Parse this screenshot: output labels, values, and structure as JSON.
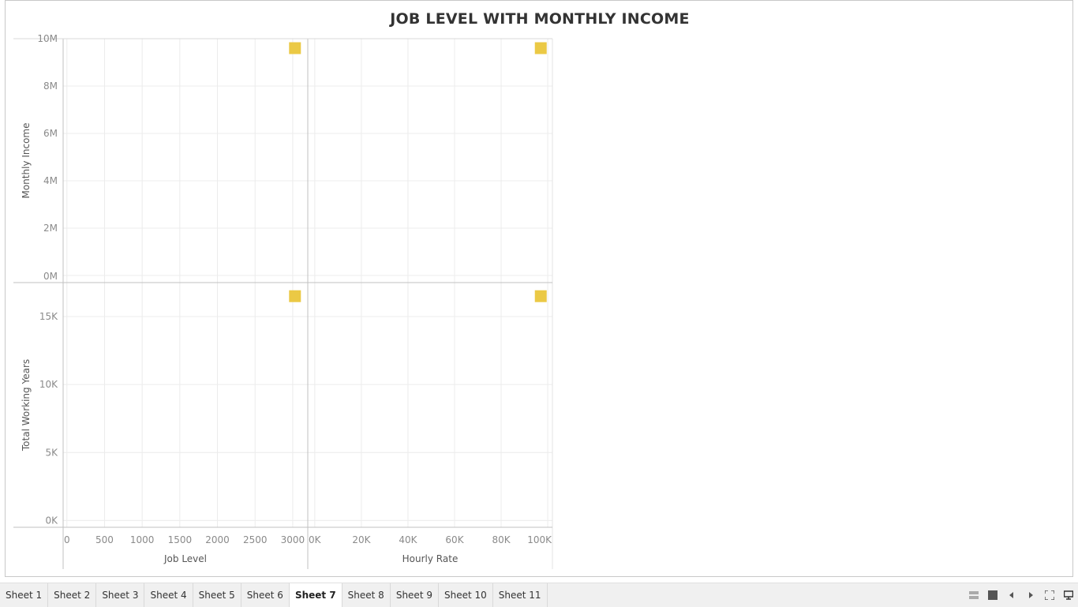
{
  "title": "JOB LEVEL WITH MONTHLY INCOME",
  "colors": {
    "mark": "#EBC945",
    "grid": "#ececec",
    "divider": "#c0c0c0",
    "tick": "#8a8a8a"
  },
  "chart_data": {
    "type": "scatter",
    "title": "JOB LEVEL WITH MONTHLY INCOME",
    "layout": "2x2 scatter matrix",
    "grid": true,
    "mark_shape": "square",
    "x_axes": [
      {
        "label": "Job Level",
        "ticks": [
          0,
          500,
          1000,
          1500,
          2000,
          2500,
          3000
        ],
        "tick_labels": [
          "0",
          "500",
          "1000",
          "1500",
          "2000",
          "2500",
          "3000"
        ],
        "range": [
          -50,
          3200
        ]
      },
      {
        "label": "Hourly Rate",
        "ticks": [
          0,
          20000,
          40000,
          60000,
          80000,
          100000
        ],
        "tick_labels": [
          "0K",
          "20K",
          "40K",
          "60K",
          "80K",
          "100K"
        ],
        "range": [
          -3000,
          102000
        ]
      }
    ],
    "y_axes": [
      {
        "label": "Monthly Income",
        "ticks": [
          0,
          2000000,
          4000000,
          6000000,
          8000000,
          10000000
        ],
        "tick_labels": [
          "0M",
          "2M",
          "4M",
          "6M",
          "8M",
          "10M"
        ],
        "range": [
          -300000,
          10000000
        ]
      },
      {
        "label": "Total Working Years",
        "ticks": [
          0,
          5000,
          10000,
          15000
        ],
        "tick_labels": [
          "0K",
          "5K",
          "10K",
          "15K"
        ],
        "range": [
          -500,
          17500
        ]
      }
    ],
    "panels": [
      {
        "row": 0,
        "col": 0,
        "points": [
          {
            "x": 3030,
            "y": 9600000
          }
        ]
      },
      {
        "row": 0,
        "col": 1,
        "points": [
          {
            "x": 97000,
            "y": 9600000
          }
        ]
      },
      {
        "row": 1,
        "col": 0,
        "points": [
          {
            "x": 3030,
            "y": 16500
          }
        ]
      },
      {
        "row": 1,
        "col": 1,
        "points": [
          {
            "x": 97000,
            "y": 16500
          }
        ]
      }
    ]
  },
  "tabs": [
    "Sheet 1",
    "Sheet 2",
    "Sheet 3",
    "Sheet 4",
    "Sheet 5",
    "Sheet 6",
    "Sheet 7",
    "Sheet 8",
    "Sheet 9",
    "Sheet 10",
    "Sheet 11"
  ],
  "active_tab": "Sheet 7",
  "controls": [
    "grid-view-icon",
    "single-view-icon",
    "prev-arrow-icon",
    "next-arrow-icon",
    "fullscreen-icon",
    "presentation-icon"
  ]
}
